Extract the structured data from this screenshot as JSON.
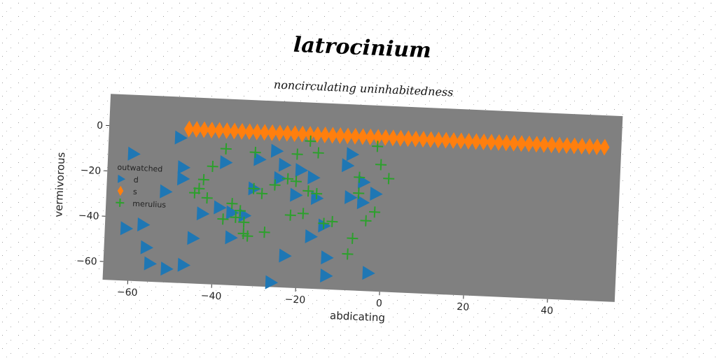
{
  "chart_data": {
    "type": "scatter",
    "title": "latrocinium",
    "subtitle": "noncirculating uninhabitedness",
    "xlabel": "abdicating",
    "ylabel": "vermivorous",
    "xlim": [
      -66,
      56
    ],
    "ylim": [
      -68,
      14
    ],
    "x_ticks": [
      -60,
      -40,
      -20,
      0,
      20,
      40
    ],
    "y_ticks": [
      0,
      -20,
      -40,
      -60
    ],
    "tick_labels": {
      "x": [
        "−60",
        "−40",
        "−20",
        "0",
        "20",
        "40"
      ],
      "y": [
        "0",
        "−20",
        "−40",
        "−60"
      ]
    },
    "background_color": "#808080",
    "grid": false,
    "legend": {
      "title": "outwatched",
      "placement": "left",
      "entries": [
        "d",
        "s",
        "merulius"
      ]
    },
    "series": [
      {
        "name": "d",
        "marker": "triangle-right",
        "color": "#1f77b4",
        "points": [
          [
            -49,
            -4
          ],
          [
            -60,
            -12
          ],
          [
            -48,
            -17
          ],
          [
            -52,
            -28
          ],
          [
            -38,
            -14
          ],
          [
            -30,
            -12
          ],
          [
            -26,
            -8
          ],
          [
            -24,
            -14
          ],
          [
            -20,
            -16
          ],
          [
            -17,
            -19
          ],
          [
            -25,
            -20
          ],
          [
            -43,
            -37
          ],
          [
            -39,
            -34
          ],
          [
            -36,
            -36
          ],
          [
            -33,
            -37
          ],
          [
            -31,
            -25
          ],
          [
            -21,
            -27
          ],
          [
            -16,
            -28
          ],
          [
            -14,
            -40
          ],
          [
            -17,
            -45
          ],
          [
            -45,
            -48
          ],
          [
            -36,
            -47
          ],
          [
            -57,
            -43
          ],
          [
            -61,
            -45
          ],
          [
            -56,
            -53
          ],
          [
            -55,
            -60
          ],
          [
            -51,
            -62
          ],
          [
            -47,
            -60
          ],
          [
            -26,
            -66
          ],
          [
            -23,
            -54
          ],
          [
            -13,
            -54
          ],
          [
            -13,
            -62
          ],
          [
            -3,
            -60
          ],
          [
            -8,
            -8
          ],
          [
            -9,
            -13
          ],
          [
            -5,
            -20
          ],
          [
            -2,
            -25
          ],
          [
            -8,
            -27
          ],
          [
            -5,
            -29
          ],
          [
            -48,
            -22
          ]
        ]
      },
      {
        "name": "s",
        "marker": "diamond",
        "color": "#ff7f0e",
        "points": [
          [
            -47.0,
            0
          ],
          [
            -45.2,
            0
          ],
          [
            -43.4,
            0
          ],
          [
            -41.6,
            0
          ],
          [
            -39.8,
            0
          ],
          [
            -38.0,
            0
          ],
          [
            -36.2,
            0
          ],
          [
            -34.4,
            0
          ],
          [
            -32.6,
            0
          ],
          [
            -30.8,
            0
          ],
          [
            -29.0,
            0
          ],
          [
            -27.2,
            0
          ],
          [
            -25.4,
            0
          ],
          [
            -23.6,
            0
          ],
          [
            -21.8,
            0
          ],
          [
            -20.0,
            0
          ],
          [
            -18.2,
            0
          ],
          [
            -16.4,
            0
          ],
          [
            -14.6,
            0
          ],
          [
            -12.8,
            0
          ],
          [
            -11.0,
            0
          ],
          [
            -9.2,
            0
          ],
          [
            -7.4,
            0
          ],
          [
            -5.6,
            0
          ],
          [
            -3.8,
            0
          ],
          [
            -2.0,
            0
          ],
          [
            -0.2,
            0
          ],
          [
            1.6,
            0
          ],
          [
            3.4,
            0
          ],
          [
            5.2,
            0
          ],
          [
            7.0,
            0
          ],
          [
            8.8,
            0
          ],
          [
            10.6,
            0
          ],
          [
            12.4,
            0
          ],
          [
            14.2,
            0
          ],
          [
            16.0,
            0
          ],
          [
            17.8,
            0
          ],
          [
            19.6,
            0
          ],
          [
            21.4,
            0
          ],
          [
            23.2,
            0
          ],
          [
            25.0,
            0
          ],
          [
            26.8,
            0
          ],
          [
            28.6,
            0
          ],
          [
            30.4,
            0
          ],
          [
            32.2,
            0
          ],
          [
            34.0,
            0
          ],
          [
            35.8,
            0
          ],
          [
            37.6,
            0
          ],
          [
            39.4,
            0
          ],
          [
            41.2,
            0
          ],
          [
            43.0,
            0
          ],
          [
            44.8,
            0
          ],
          [
            46.6,
            0
          ],
          [
            48.4,
            0
          ],
          [
            50.2,
            0
          ],
          [
            52.0,
            0
          ]
        ]
      },
      {
        "name": "merulius",
        "marker": "plus",
        "color": "#2ca02c",
        "points": [
          [
            -38,
            -8
          ],
          [
            -31,
            -9
          ],
          [
            -21,
            -9
          ],
          [
            -18,
            -3
          ],
          [
            -16,
            -8
          ],
          [
            -2,
            -4
          ],
          [
            -1,
            -12
          ],
          [
            1,
            -18
          ],
          [
            -41,
            -16
          ],
          [
            -43,
            -22
          ],
          [
            -44,
            -26
          ],
          [
            -45,
            -28
          ],
          [
            -42,
            -30
          ],
          [
            -31,
            -25
          ],
          [
            -29,
            -27
          ],
          [
            -26,
            -23
          ],
          [
            -23,
            -20
          ],
          [
            -21,
            -21
          ],
          [
            -18,
            -25
          ],
          [
            -16,
            -26
          ],
          [
            -6,
            -18
          ],
          [
            -6,
            -25
          ],
          [
            -36,
            -32
          ],
          [
            -34,
            -35
          ],
          [
            -35,
            -38
          ],
          [
            -33,
            -40
          ],
          [
            -38,
            -39
          ],
          [
            -22,
            -36
          ],
          [
            -19,
            -35
          ],
          [
            -14,
            -39
          ],
          [
            -12,
            -38
          ],
          [
            -28,
            -44
          ],
          [
            -33,
            -45
          ],
          [
            -32,
            -46
          ],
          [
            -4,
            -37
          ],
          [
            -2,
            -33
          ],
          [
            -7,
            -45
          ],
          [
            -8,
            -52
          ]
        ]
      }
    ]
  }
}
